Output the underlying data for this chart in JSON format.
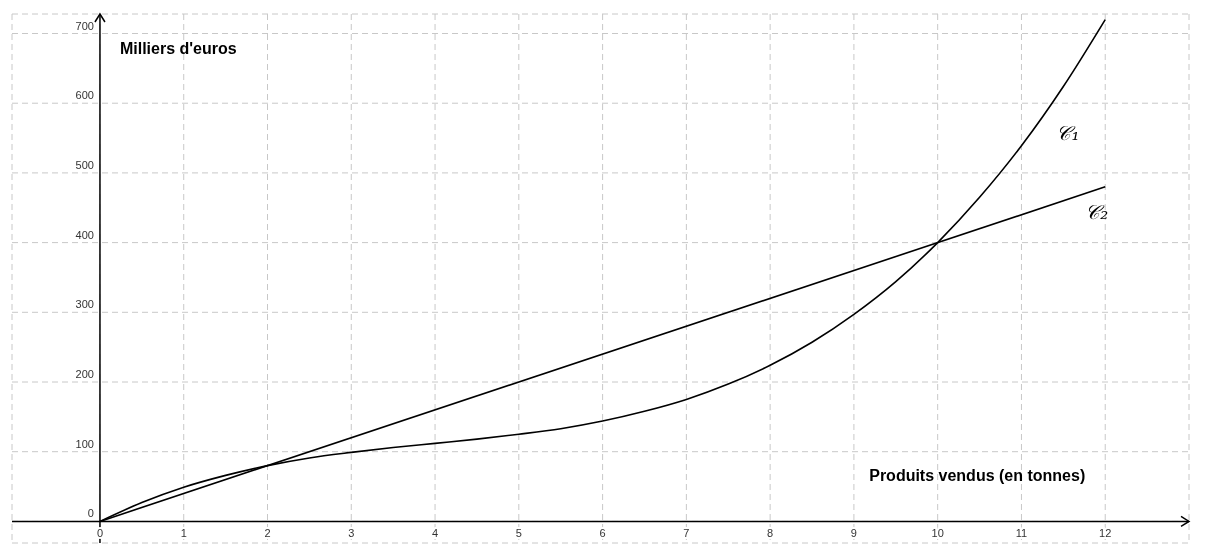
{
  "chart_data": {
    "type": "line",
    "xlabel": "Produits vendus (en tonnes)",
    "ylabel": "Milliers d'euros",
    "xlim": [
      -1.05,
      13
    ],
    "ylim": [
      -31,
      728
    ],
    "xticks": [
      0,
      1,
      2,
      3,
      4,
      5,
      6,
      7,
      8,
      9,
      10,
      11,
      12
    ],
    "yticks": [
      0,
      100,
      200,
      300,
      400,
      500,
      600,
      700
    ],
    "grid": true,
    "marker": "none",
    "line_style": "solid",
    "series": [
      {
        "name": "𝒞₁",
        "color": "#000000",
        "x": [
          0,
          0.5,
          1,
          1.5,
          2,
          2.5,
          3,
          3.5,
          4,
          4.5,
          5,
          5.5,
          6,
          6.5,
          7,
          7.5,
          8,
          8.5,
          9,
          9.5,
          10,
          10.5,
          11,
          11.5,
          12
        ],
        "values": [
          0,
          27,
          49,
          66,
          80,
          91,
          99,
          106,
          112,
          118,
          125,
          133,
          144,
          158,
          175,
          197,
          224,
          257,
          297,
          344,
          400,
          465,
          539,
          624,
          720
        ]
      },
      {
        "name": "𝒞₂",
        "color": "#000000",
        "x": [
          0,
          12
        ],
        "values": [
          0,
          480
        ]
      }
    ]
  }
}
